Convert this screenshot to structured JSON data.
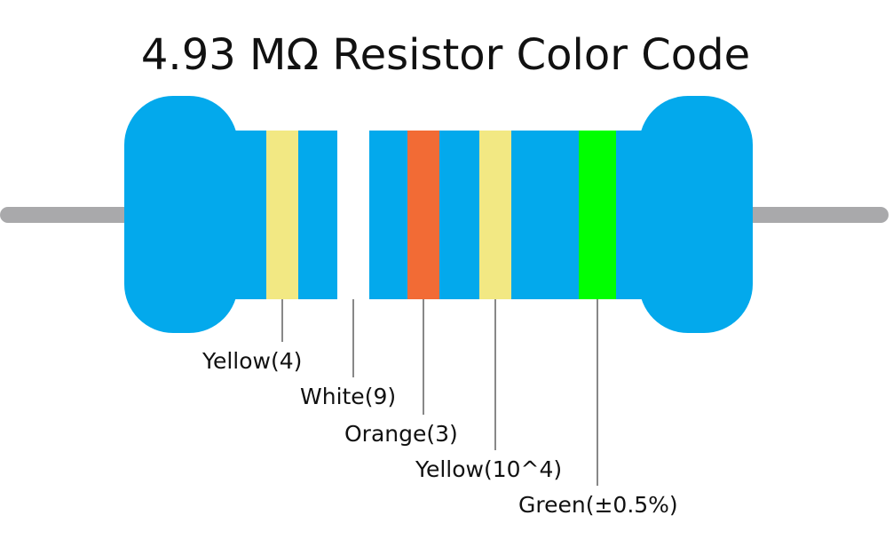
{
  "title": "4.93 MΩ Resistor Color Code",
  "bands": [
    {
      "label": "Yellow(4)",
      "color": "#f2e883"
    },
    {
      "label": "White(9)",
      "color": "#ffffff"
    },
    {
      "label": "Orange(3)",
      "color": "#f26b35"
    },
    {
      "label": "Yellow(10^4)",
      "color": "#f2e883"
    },
    {
      "label": "Green(±0.5%)",
      "color": "#00ff00"
    }
  ]
}
